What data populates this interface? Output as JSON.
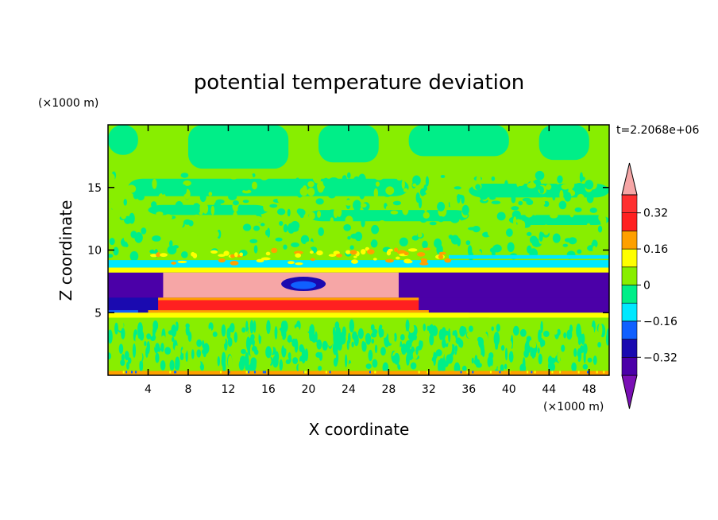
{
  "chart_data": {
    "type": "heatmap",
    "title": "potential temperature deviation",
    "xlabel": "X coordinate",
    "ylabel": "Z coordinate",
    "x_unit": "(×1000 m)",
    "y_unit": "(×1000 m)",
    "time_label": "t=2.2068e+06",
    "xlim": [
      0,
      50
    ],
    "ylim": [
      0,
      20
    ],
    "x_ticks": [
      4,
      8,
      12,
      16,
      20,
      24,
      28,
      32,
      36,
      40,
      44,
      48
    ],
    "y_ticks": [
      5,
      10,
      15
    ],
    "colorbar": {
      "levels": [
        -0.4,
        -0.32,
        -0.24,
        -0.16,
        -0.08,
        0,
        0.08,
        0.16,
        0.24,
        0.32,
        0.4
      ],
      "tick_values": [
        0.32,
        0.16,
        0,
        -0.16,
        -0.32
      ],
      "tick_labels": [
        "0.32",
        "0.16",
        "0",
        "−0.16",
        "−0.32"
      ],
      "colors": [
        "#7a0fb5",
        "#4b00a8",
        "#1a0ab0",
        "#1060ff",
        "#00e8ff",
        "#00ee88",
        "#88ee00",
        "#ffff00",
        "#ffa000",
        "#ff2020",
        "#ff3030",
        "#f6a6a6"
      ],
      "extend": "both"
    },
    "regions": [
      {
        "x": [
          0,
          50
        ],
        "z": [
          17.5,
          20
        ],
        "level": "0 to 0.08 with mix of -0.08 to 0"
      },
      {
        "x": [
          0,
          50
        ],
        "z": [
          9.5,
          17.5
        ],
        "level": "-0.08 to 0.08 (mixed)"
      },
      {
        "x": [
          0,
          50
        ],
        "z": [
          8.2,
          9.4
        ],
        "level": "-0.16 to -0.08 band with 0.16 to 0.32 spots"
      },
      {
        "x": [
          0,
          50
        ],
        "z": [
          5.0,
          8.2
        ],
        "level": "-0.32 to -0.24 (purple)"
      },
      {
        "x": [
          5,
          29
        ],
        "z": [
          6.8,
          8.2
        ],
        "level": "> 0.4 (pink)"
      },
      {
        "x": [
          5,
          31
        ],
        "z": [
          5.2,
          6.0
        ],
        "level": "0.32 to 0.4 (red)"
      },
      {
        "x": [
          0,
          50
        ],
        "z": [
          4.3,
          5.0
        ],
        "level": "0.08 to 0.24 (yellow/orange)"
      },
      {
        "x": [
          0,
          50
        ],
        "z": [
          0.3,
          4.3
        ],
        "level": "-0.08 to 0.08 (mixed)"
      },
      {
        "x": [
          0,
          50
        ],
        "z": [
          0,
          0.3
        ],
        "level": "0.24 to 0.32 (orange)"
      }
    ]
  }
}
